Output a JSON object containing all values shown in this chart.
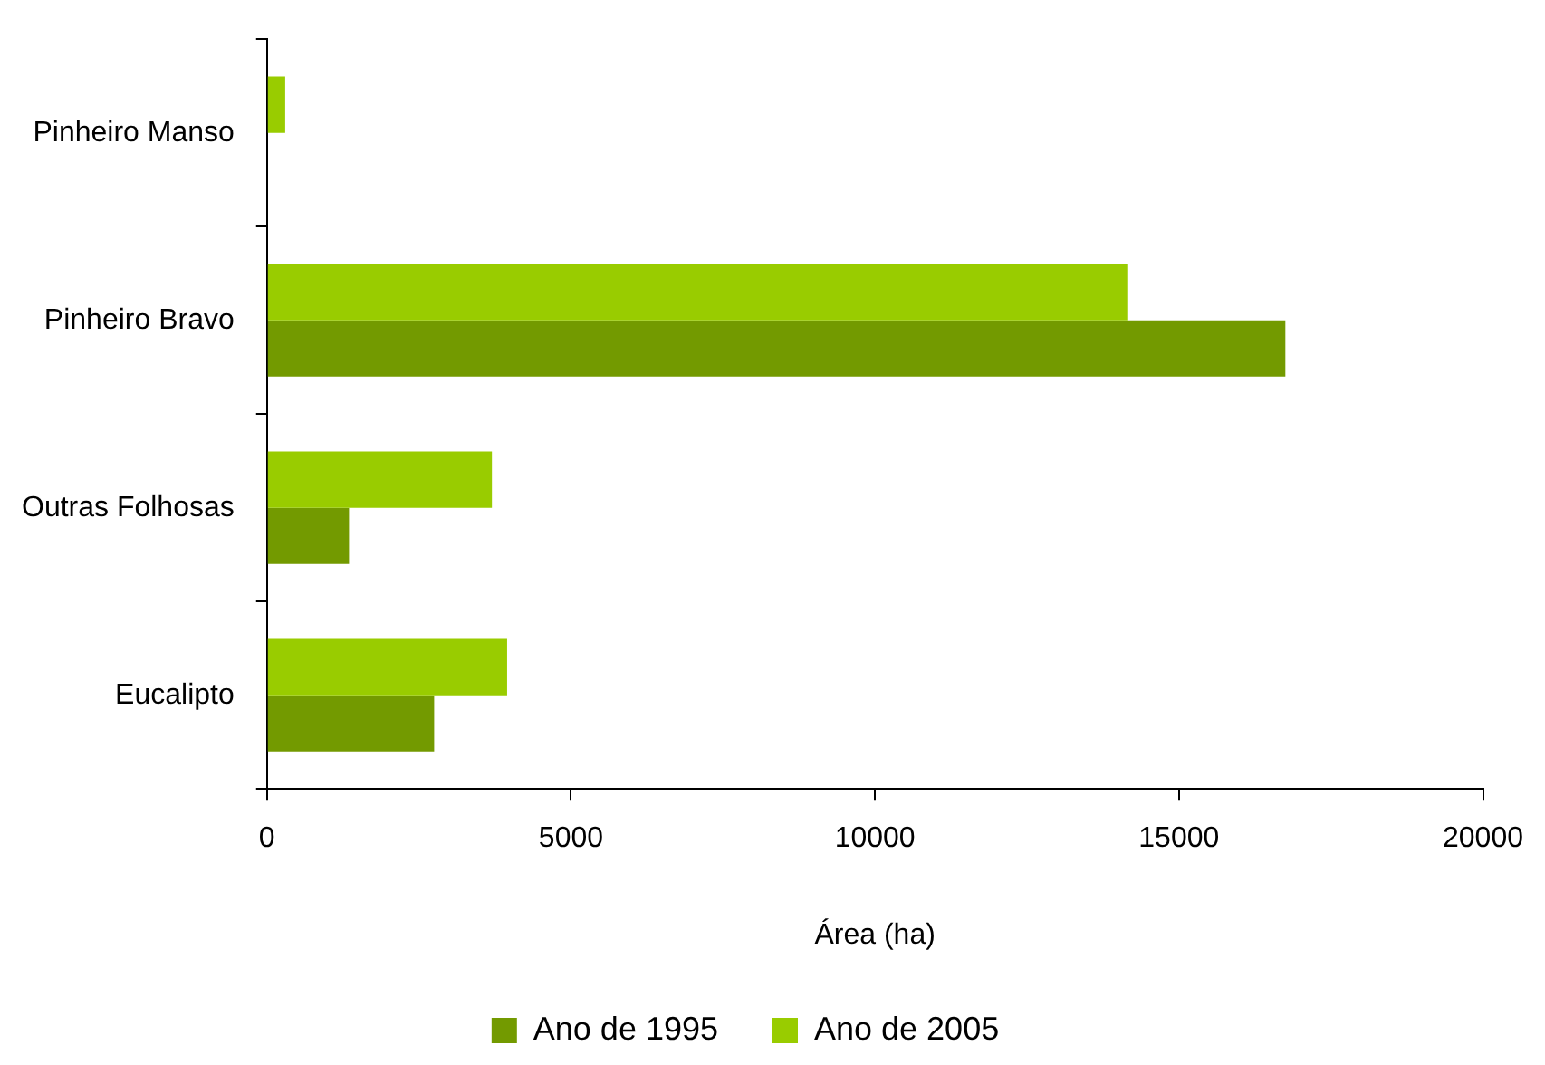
{
  "chart_data": {
    "type": "bar",
    "orientation": "horizontal",
    "xlabel": "Área (ha)",
    "categories": [
      "Pinheiro Manso",
      "Pinheiro Bravo",
      "Outras Folhosas",
      "Eucalipto"
    ],
    "series": [
      {
        "name": "Ano de 1995",
        "color": "#739a00",
        "values": [
          0,
          16750,
          1350,
          2750
        ]
      },
      {
        "name": "Ano de 2005",
        "color": "#99cc00",
        "values": [
          300,
          14150,
          3700,
          3950
        ]
      }
    ],
    "xlim": [
      0,
      20000
    ],
    "xticks": [
      0,
      5000,
      10000,
      15000,
      20000
    ],
    "grid": false,
    "legend": "bottom"
  }
}
